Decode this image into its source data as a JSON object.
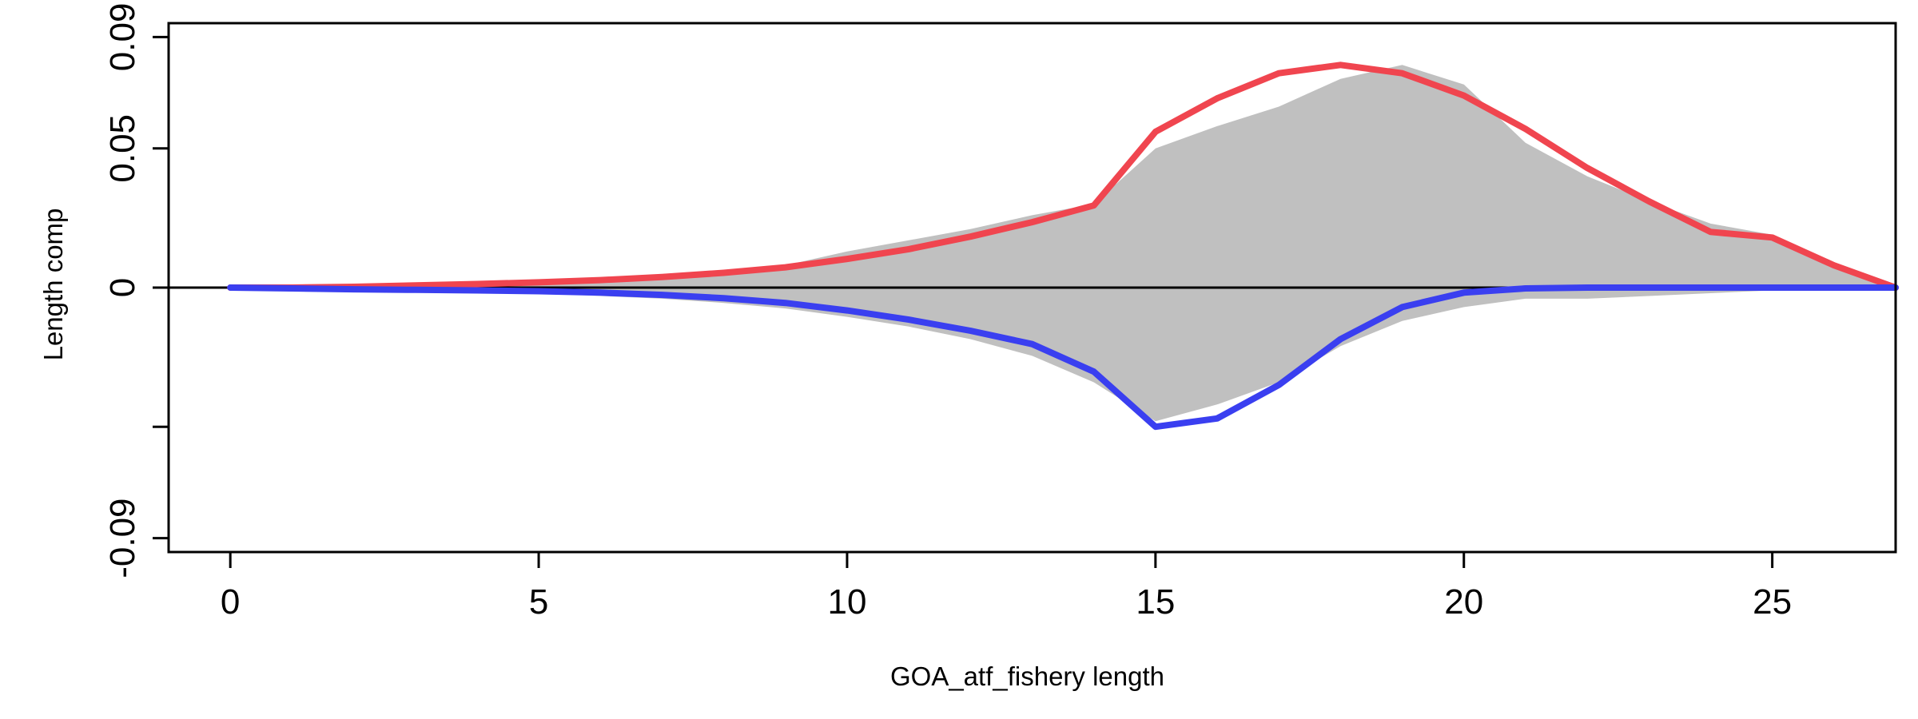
{
  "chart_data": {
    "type": "area",
    "title": "",
    "xlabel": "GOA_atf_fishery length",
    "ylabel": "Length comp",
    "xlim": [
      -1,
      27
    ],
    "ylim": [
      -0.095,
      0.095
    ],
    "x_ticks": [
      0,
      5,
      10,
      15,
      20,
      25
    ],
    "x_tick_labels": [
      "0",
      "5",
      "10",
      "15",
      "20",
      "25"
    ],
    "y_ticks": [
      -0.09,
      -0.05,
      0,
      0.05,
      0.09
    ],
    "y_tick_labels": [
      "-0.09",
      "",
      "0",
      "0.05",
      "0.09"
    ],
    "x": [
      0,
      1,
      2,
      3,
      4,
      5,
      6,
      7,
      8,
      9,
      10,
      11,
      12,
      13,
      14,
      15,
      16,
      17,
      18,
      19,
      20,
      21,
      22,
      23,
      24,
      25,
      26,
      27
    ],
    "series": [
      {
        "role": "observed-upper",
        "color": "#c0c0c0",
        "values": [
          0,
          0,
          0.0005,
          0.001,
          0.0015,
          0.002,
          0.003,
          0.004,
          0.0055,
          0.008,
          0.013,
          0.017,
          0.021,
          0.026,
          0.03,
          0.05,
          0.058,
          0.065,
          0.075,
          0.08,
          0.073,
          0.052,
          0.04,
          0.031,
          0.023,
          0.019,
          0.008,
          0
        ]
      },
      {
        "role": "observed-lower",
        "color": "#c0c0c0",
        "values": [
          0,
          -0.0005,
          -0.001,
          -0.0012,
          -0.0015,
          -0.002,
          -0.003,
          -0.004,
          -0.0055,
          -0.0075,
          -0.0105,
          -0.014,
          -0.0185,
          -0.0245,
          -0.034,
          -0.048,
          -0.042,
          -0.034,
          -0.021,
          -0.012,
          -0.007,
          -0.004,
          -0.004,
          -0.003,
          -0.002,
          -0.001,
          -0.0005,
          0
        ]
      },
      {
        "role": "expected-upper",
        "color": "#f0454f",
        "values": [
          0,
          0,
          0.0003,
          0.0008,
          0.0013,
          0.0019,
          0.0027,
          0.0038,
          0.0053,
          0.0073,
          0.0103,
          0.0138,
          0.0183,
          0.0235,
          0.0295,
          0.056,
          0.068,
          0.077,
          0.08,
          0.077,
          0.069,
          0.057,
          0.043,
          0.031,
          0.02,
          0.018,
          0.008,
          0
        ]
      },
      {
        "role": "expected-lower",
        "color": "#3a3ff0",
        "values": [
          0,
          -0.0003,
          -0.0006,
          -0.0008,
          -0.001,
          -0.0013,
          -0.0018,
          -0.0026,
          -0.0038,
          -0.0055,
          -0.0082,
          -0.0115,
          -0.0155,
          -0.0203,
          -0.0302,
          -0.05,
          -0.047,
          -0.035,
          -0.0185,
          -0.007,
          -0.0018,
          -0.0003,
          0,
          0,
          0,
          0,
          0,
          0
        ]
      }
    ],
    "grid": false,
    "legend": "none"
  }
}
